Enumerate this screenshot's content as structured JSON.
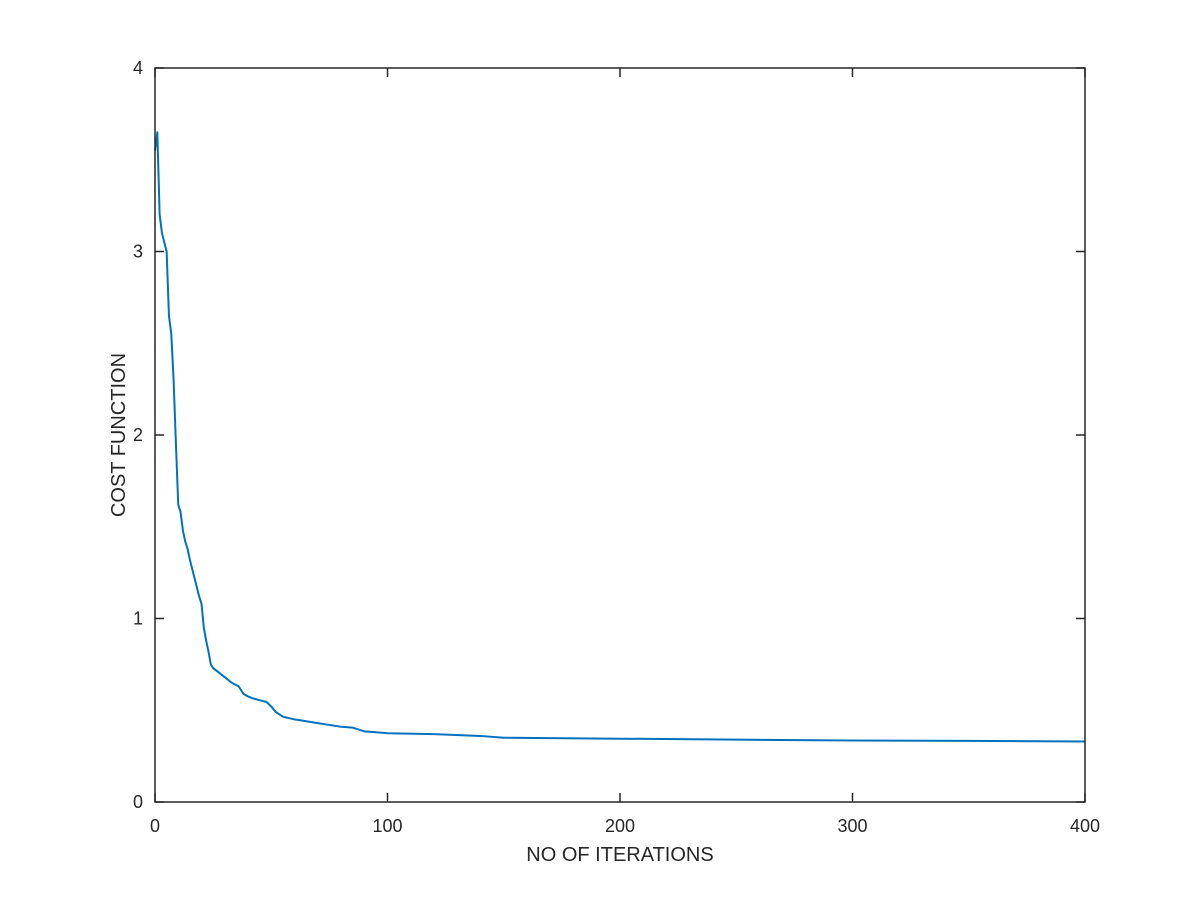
{
  "chart_data": {
    "type": "line",
    "title": "",
    "xlabel": "NO OF ITERATIONS",
    "ylabel": "COST FUNCTION",
    "xlim": [
      0,
      400
    ],
    "ylim": [
      0,
      4
    ],
    "xticks": [
      0,
      100,
      200,
      300,
      400
    ],
    "yticks": [
      0,
      1,
      2,
      3,
      4
    ],
    "grid": false,
    "legend": "none",
    "colors": {
      "line": "#0072BD",
      "axes": "#262626"
    },
    "series": [
      {
        "x": [
          0,
          1,
          2,
          3,
          4,
          5,
          6,
          7,
          8,
          9,
          10,
          11,
          12,
          13,
          14,
          15,
          17,
          19,
          20,
          21,
          22,
          23,
          24,
          25,
          27,
          30,
          33,
          36,
          38,
          40,
          42,
          45,
          48,
          50,
          52,
          55,
          60,
          65,
          70,
          75,
          80,
          85,
          90,
          95,
          100,
          120,
          140,
          150,
          200,
          250,
          300,
          350,
          400
        ],
        "y": [
          3.55,
          3.65,
          3.2,
          3.1,
          3.05,
          3.0,
          2.65,
          2.55,
          2.3,
          1.95,
          1.62,
          1.58,
          1.48,
          1.42,
          1.38,
          1.32,
          1.22,
          1.12,
          1.08,
          0.95,
          0.88,
          0.82,
          0.75,
          0.73,
          0.71,
          0.68,
          0.65,
          0.63,
          0.59,
          0.575,
          0.565,
          0.555,
          0.545,
          0.52,
          0.49,
          0.465,
          0.45,
          0.44,
          0.43,
          0.42,
          0.41,
          0.405,
          0.385,
          0.38,
          0.375,
          0.37,
          0.36,
          0.35,
          0.345,
          0.34,
          0.335,
          0.333,
          0.33
        ]
      }
    ]
  }
}
